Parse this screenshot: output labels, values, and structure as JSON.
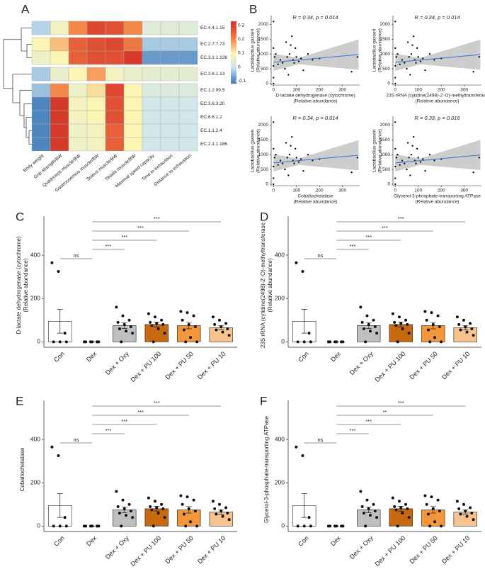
{
  "chart_data": [
    {
      "type": "heatmap",
      "panel": "A",
      "rows": [
        "EC.4.4.1.15",
        "EC.2.7.7.73",
        "EC.3.2.1.136",
        "EC.2.6.1.13",
        "EC.1.2.99.5",
        "EC.3.6.3.20",
        "EC.6.6.1.2",
        "EC.1.1.2.4",
        "EC.2.1.1.186"
      ],
      "columns": [
        "Body weight",
        "Grip strength/BW",
        "Quadriceps muscle/BW",
        "Gastrocnemius muscle/BW",
        "Soleus muscle/BW",
        "Tibialis muscle/BW",
        "Maximal speed capacity",
        "Time to exhaustion",
        "Distance to exhaustion"
      ],
      "values": [
        [
          -0.02,
          0.08,
          0.2,
          0.28,
          0.27,
          0.2,
          0.04,
          0.04,
          0.04
        ],
        [
          0.1,
          0.15,
          0.25,
          0.27,
          0.28,
          0.22,
          -0.03,
          -0.03,
          -0.03
        ],
        [
          0.07,
          0.1,
          0.25,
          0.27,
          0.27,
          0.3,
          -0.08,
          -0.08,
          -0.08
        ],
        [
          -0.03,
          0.06,
          0.1,
          0.18,
          0.08,
          0.06,
          0.05,
          0.05,
          0.05
        ],
        [
          -0.04,
          0.2,
          0.07,
          0.12,
          0.28,
          0.1,
          0.03,
          0.03,
          0.03
        ],
        [
          -0.1,
          0.3,
          0.08,
          0.1,
          0.27,
          0.1,
          0.01,
          0.01,
          0.01
        ],
        [
          -0.1,
          0.3,
          0.08,
          0.1,
          0.27,
          0.1,
          0.01,
          0.01,
          0.01
        ],
        [
          -0.1,
          0.3,
          0.07,
          0.08,
          0.25,
          0.1,
          0.01,
          0.01,
          0.01
        ],
        [
          -0.1,
          0.3,
          0.07,
          0.08,
          0.25,
          0.1,
          0.01,
          0.01,
          0.01
        ]
      ],
      "zlim": [
        -0.12,
        0.33
      ],
      "zticks": [
        -0.1,
        0,
        0.1,
        0.2,
        0.3
      ],
      "colors": [
        "#4f86c0",
        "#cde6f0",
        "#fcf4b2",
        "#f4874a",
        "#d73a2a"
      ]
    },
    {
      "type": "scatter",
      "panel": "B",
      "annotation": "R = 0.34, p = 0.014",
      "xlabel": [
        "D-lactate dehydrogenase (cytochrome)",
        "(Relative abundance)"
      ],
      "ylabel": [
        "Lactobacillus gasseri",
        "(Relative abundance)"
      ],
      "x": [
        0,
        0,
        0,
        0,
        0,
        5,
        10,
        20,
        30,
        40,
        50,
        55,
        60,
        65,
        70,
        75,
        80,
        85,
        90,
        95,
        100,
        110,
        120,
        130,
        150,
        170,
        200,
        340,
        365
      ],
      "values": [
        0,
        200,
        600,
        1200,
        2100,
        900,
        1000,
        650,
        800,
        700,
        500,
        1400,
        900,
        300,
        1000,
        1300,
        1600,
        800,
        700,
        1200,
        900,
        750,
        850,
        450,
        1000,
        800,
        850,
        400,
        900
      ],
      "fit": {
        "x": [
          0,
          370
        ],
        "y": [
          720,
          980
        ]
      },
      "band": {
        "x": [
          0,
          110,
          370
        ],
        "lower": [
          430,
          650,
          470
        ],
        "upper": [
          1010,
          870,
          1490
        ]
      },
      "xlim": [
        -10,
        375
      ],
      "ylim": [
        -50,
        2300
      ],
      "xticks": [
        0,
        100,
        200,
        300
      ],
      "yticks": [
        0,
        500,
        1000,
        1500,
        2000
      ],
      "color": "#111111",
      "line_color": "#3b6fd6",
      "band_color": "#c4c4c4"
    },
    {
      "type": "scatter",
      "annotation": "R = 0.34, p = 0.014",
      "xlabel": [
        "23S rRNA (cytidine(2498)-2'-O)-methyltransferase",
        "(Relative abundance)"
      ],
      "ylabel": [
        "Lactobacillus gasseri",
        "(Relative abundance)"
      ],
      "x": [
        0,
        0,
        0,
        0,
        0,
        5,
        10,
        20,
        30,
        40,
        50,
        55,
        60,
        65,
        70,
        75,
        80,
        85,
        90,
        95,
        100,
        110,
        120,
        130,
        150,
        170,
        200,
        340,
        365
      ],
      "values": [
        0,
        200,
        600,
        1200,
        2100,
        900,
        1000,
        650,
        800,
        700,
        500,
        1400,
        900,
        300,
        1000,
        1300,
        1600,
        800,
        700,
        1200,
        900,
        750,
        850,
        450,
        1000,
        800,
        850,
        400,
        900
      ],
      "fit": {
        "x": [
          0,
          370
        ],
        "y": [
          720,
          980
        ]
      },
      "band": {
        "x": [
          0,
          110,
          370
        ],
        "lower": [
          430,
          650,
          470
        ],
        "upper": [
          1010,
          870,
          1490
        ]
      },
      "xlim": [
        -10,
        375
      ],
      "ylim": [
        -50,
        2300
      ],
      "xticks": [
        0,
        100,
        200,
        300
      ],
      "yticks": [
        0,
        500,
        1000,
        1500,
        2000
      ],
      "color": "#111111",
      "line_color": "#3b6fd6",
      "band_color": "#c4c4c4"
    },
    {
      "type": "scatter",
      "annotation": "R = 0.34, p = 0.014",
      "xlabel": [
        "Cobaltochelatase",
        "(Relative abundance)"
      ],
      "ylabel": [
        "Lactobacillus gasseri",
        "(Relative abundance)"
      ],
      "x": [
        0,
        0,
        0,
        0,
        0,
        5,
        10,
        20,
        30,
        40,
        50,
        55,
        60,
        65,
        70,
        75,
        80,
        85,
        90,
        95,
        100,
        110,
        120,
        130,
        150,
        170,
        200,
        340,
        365
      ],
      "values": [
        0,
        200,
        600,
        1200,
        2100,
        900,
        1000,
        650,
        800,
        700,
        500,
        1400,
        900,
        300,
        1000,
        1300,
        1600,
        800,
        700,
        1200,
        900,
        750,
        850,
        450,
        1000,
        800,
        850,
        400,
        900
      ],
      "fit": {
        "x": [
          0,
          370
        ],
        "y": [
          720,
          980
        ]
      },
      "band": {
        "x": [
          0,
          110,
          370
        ],
        "lower": [
          430,
          650,
          470
        ],
        "upper": [
          1010,
          870,
          1490
        ]
      },
      "xlim": [
        -10,
        375
      ],
      "ylim": [
        -50,
        2300
      ],
      "xticks": [
        0,
        100,
        200,
        300
      ],
      "yticks": [
        0,
        500,
        1000,
        1500,
        2000
      ],
      "color": "#111111",
      "line_color": "#3b6fd6",
      "band_color": "#c4c4c4"
    },
    {
      "type": "scatter",
      "annotation": "R = 0.33, p = 0.016",
      "xlabel": [
        "Glycerol-3-phosphate-transporting ATPase",
        "(Relative abundance)"
      ],
      "ylabel": [
        "Lactobacillus gasseri",
        "(Relative abundance)"
      ],
      "x": [
        0,
        0,
        0,
        0,
        0,
        5,
        10,
        20,
        30,
        40,
        50,
        55,
        60,
        65,
        70,
        75,
        80,
        85,
        90,
        95,
        100,
        110,
        120,
        130,
        150,
        170,
        200,
        340,
        365
      ],
      "values": [
        0,
        200,
        600,
        1200,
        2100,
        900,
        1000,
        650,
        800,
        700,
        500,
        1400,
        900,
        300,
        1000,
        1300,
        1600,
        800,
        700,
        1200,
        900,
        750,
        850,
        450,
        1000,
        800,
        850,
        400,
        900
      ],
      "fit": {
        "x": [
          0,
          370
        ],
        "y": [
          720,
          990
        ]
      },
      "band": {
        "x": [
          0,
          110,
          370
        ],
        "lower": [
          430,
          650,
          480
        ],
        "upper": [
          1010,
          870,
          1500
        ]
      },
      "xlim": [
        -10,
        375
      ],
      "ylim": [
        -50,
        2300
      ],
      "xticks": [
        0,
        100,
        200,
        300
      ],
      "yticks": [
        0,
        500,
        1000,
        1500,
        2000
      ],
      "color": "#111111",
      "line_color": "#3b6fd6",
      "band_color": "#c4c4c4"
    },
    {
      "type": "bar",
      "panel": "C",
      "ylabel": [
        "D-lactate dehydrogenase (cytochrome)",
        "(Relative abundance)"
      ],
      "categories": [
        "Con",
        "Dex",
        "Dex + Oxy",
        "Dex + PU 100",
        "Dex + PU 50",
        "Dex + PU 10"
      ],
      "values": [
        95,
        0,
        75,
        80,
        75,
        65
      ],
      "errors": [
        55,
        0,
        13,
        11,
        15,
        9
      ],
      "colors": [
        "#ffffff",
        "#ffffff",
        "#bfbfbf",
        "#c8690f",
        "#f4973c",
        "#f9c38f"
      ],
      "points": [
        [
          365,
          325,
          40,
          0,
          0,
          0
        ],
        [
          0,
          0,
          0,
          0,
          0,
          0
        ],
        [
          160,
          120,
          100,
          90,
          80,
          70,
          60,
          50,
          40,
          0
        ],
        [
          130,
          115,
          100,
          90,
          85,
          80,
          75,
          60,
          40,
          0
        ],
        [
          140,
          135,
          120,
          100,
          80,
          70,
          55,
          20,
          0,
          0
        ],
        [
          115,
          100,
          85,
          80,
          70,
          60,
          55,
          45,
          30
        ]
      ],
      "ylim": [
        -25,
        580
      ],
      "yticks": [
        0,
        200,
        400
      ],
      "comparisons": [
        {
          "groups": [
            "Con",
            "Dex"
          ],
          "label": "ns"
        },
        {
          "groups": [
            "Dex",
            "Dex + Oxy"
          ],
          "label": "***"
        },
        {
          "groups": [
            "Dex",
            "Dex + PU 100"
          ],
          "label": "***"
        },
        {
          "groups": [
            "Dex",
            "Dex + PU 50"
          ],
          "label": "***"
        },
        {
          "groups": [
            "Dex",
            "Dex + PU 10"
          ],
          "label": "***"
        }
      ]
    },
    {
      "type": "bar",
      "panel": "D",
      "ylabel": [
        "23S rRNA (cytidine(2498)-2'-O)-methyltransferase",
        "(Relative abundance)"
      ],
      "categories": [
        "Con",
        "Dex",
        "Dex + Oxy",
        "Dex + PU 100",
        "Dex + PU 50",
        "Dex + PU 10"
      ],
      "values": [
        95,
        0,
        75,
        80,
        75,
        65
      ],
      "errors": [
        55,
        0,
        13,
        11,
        15,
        9
      ],
      "colors": [
        "#ffffff",
        "#ffffff",
        "#bfbfbf",
        "#c8690f",
        "#f4973c",
        "#f9c38f"
      ],
      "points": [
        [
          365,
          325,
          40,
          0,
          0,
          0
        ],
        [
          0,
          0,
          0,
          0,
          0,
          0
        ],
        [
          160,
          120,
          100,
          90,
          80,
          70,
          60,
          50,
          40,
          0
        ],
        [
          130,
          115,
          100,
          90,
          85,
          80,
          75,
          60,
          40,
          0
        ],
        [
          140,
          135,
          120,
          100,
          80,
          70,
          55,
          20,
          0,
          0
        ],
        [
          115,
          100,
          85,
          80,
          70,
          60,
          55,
          45,
          30
        ]
      ],
      "ylim": [
        -25,
        580
      ],
      "yticks": [
        0,
        200,
        400
      ],
      "comparisons": [
        {
          "groups": [
            "Con",
            "Dex"
          ],
          "label": "ns"
        },
        {
          "groups": [
            "Dex",
            "Dex + Oxy"
          ],
          "label": "***"
        },
        {
          "groups": [
            "Dex",
            "Dex + PU 100"
          ],
          "label": "***"
        },
        {
          "groups": [
            "Dex",
            "Dex + PU 50"
          ],
          "label": "***"
        },
        {
          "groups": [
            "Dex",
            "Dex + PU 10"
          ],
          "label": "***"
        }
      ]
    },
    {
      "type": "bar",
      "panel": "E",
      "ylabel": [
        "Cobaltochelatase"
      ],
      "categories": [
        "Con",
        "Dex",
        "Dex + Oxy",
        "Dex + PU 100",
        "Dex + PU 50",
        "Dex + PU 10"
      ],
      "values": [
        95,
        0,
        75,
        80,
        75,
        65
      ],
      "errors": [
        55,
        0,
        13,
        11,
        15,
        10
      ],
      "colors": [
        "#ffffff",
        "#ffffff",
        "#bfbfbf",
        "#c8690f",
        "#f4973c",
        "#f9c38f"
      ],
      "points": [
        [
          365,
          325,
          40,
          0,
          0,
          0
        ],
        [
          0,
          0,
          0,
          0,
          0,
          0
        ],
        [
          160,
          120,
          100,
          90,
          80,
          70,
          60,
          50,
          40,
          0
        ],
        [
          130,
          115,
          100,
          90,
          85,
          80,
          75,
          60,
          40,
          0
        ],
        [
          140,
          135,
          120,
          100,
          80,
          70,
          55,
          20,
          0,
          0
        ],
        [
          115,
          100,
          85,
          80,
          70,
          60,
          55,
          45,
          30
        ]
      ],
      "ylim": [
        -25,
        580
      ],
      "yticks": [
        0,
        200,
        400
      ],
      "comparisons": [
        {
          "groups": [
            "Con",
            "Dex"
          ],
          "label": "ns"
        },
        {
          "groups": [
            "Dex",
            "Dex + Oxy"
          ],
          "label": "***"
        },
        {
          "groups": [
            "Dex",
            "Dex + PU 100"
          ],
          "label": "***"
        },
        {
          "groups": [
            "Dex",
            "Dex + PU 50"
          ],
          "label": "***"
        },
        {
          "groups": [
            "Dex",
            "Dex + PU 10"
          ],
          "label": "***"
        }
      ]
    },
    {
      "type": "bar",
      "panel": "F",
      "ylabel": [
        "Glycerol-3-phosphate-transporting ATPase"
      ],
      "categories": [
        "Con",
        "Dex",
        "Dex + Oxy",
        "Dex + PU 100",
        "Dex + PU 50",
        "Dex + PU 10"
      ],
      "values": [
        95,
        0,
        75,
        80,
        75,
        65
      ],
      "errors": [
        55,
        0,
        13,
        11,
        15,
        9
      ],
      "colors": [
        "#ffffff",
        "#ffffff",
        "#bfbfbf",
        "#c8690f",
        "#f4973c",
        "#f9c38f"
      ],
      "points": [
        [
          365,
          325,
          40,
          0,
          0,
          0
        ],
        [
          0,
          0,
          0,
          0,
          0,
          0
        ],
        [
          160,
          120,
          100,
          90,
          80,
          70,
          60,
          50,
          40,
          0
        ],
        [
          130,
          115,
          100,
          90,
          85,
          80,
          75,
          60,
          40,
          0
        ],
        [
          140,
          135,
          120,
          100,
          80,
          70,
          55,
          20,
          0,
          0
        ],
        [
          115,
          100,
          85,
          80,
          70,
          60,
          55,
          45,
          30
        ]
      ],
      "ylim": [
        -25,
        580
      ],
      "yticks": [
        0,
        200,
        400
      ],
      "comparisons": [
        {
          "groups": [
            "Con",
            "Dex"
          ],
          "label": "ns"
        },
        {
          "groups": [
            "Dex",
            "Dex + Oxy"
          ],
          "label": "***"
        },
        {
          "groups": [
            "Dex",
            "Dex + PU 100"
          ],
          "label": "***"
        },
        {
          "groups": [
            "Dex",
            "Dex + PU 50"
          ],
          "label": "**"
        },
        {
          "groups": [
            "Dex",
            "Dex + PU 10"
          ],
          "label": "***"
        }
      ]
    }
  ]
}
